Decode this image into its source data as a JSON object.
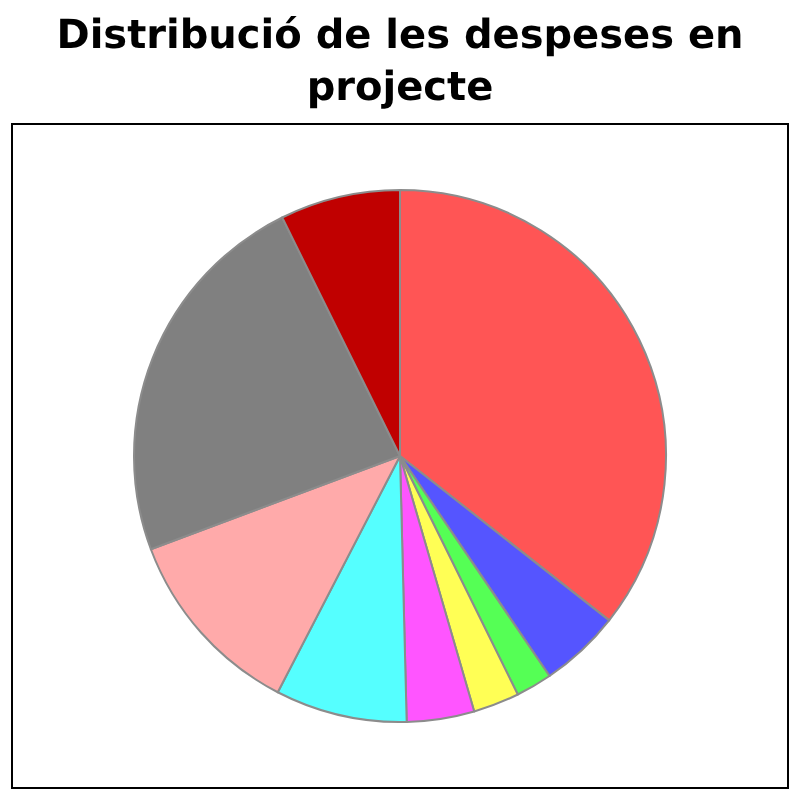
{
  "chart_data": {
    "type": "pie",
    "title": "Distribució de les despeses en projecte",
    "categories": [
      null,
      null,
      null,
      null,
      null,
      null,
      null,
      null,
      null
    ],
    "values": [
      35.6,
      4.9,
      2.2,
      2.8,
      4.1,
      8.0,
      11.7,
      23.4,
      7.3
    ],
    "colors": [
      "#ff5555",
      "#5555ff",
      "#55ff55",
      "#ffff55",
      "#ff55ff",
      "#55ffff",
      "#ffaaaa",
      "#808080",
      "#c00000"
    ]
  }
}
